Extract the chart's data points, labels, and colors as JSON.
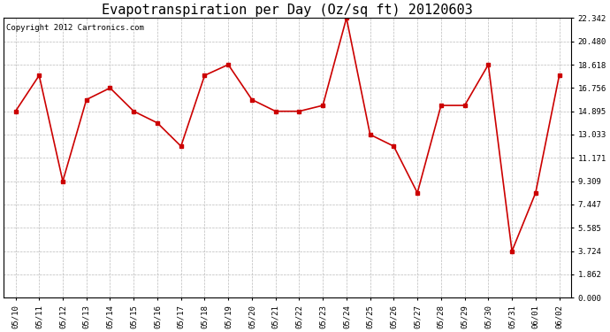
{
  "title": "Evapotranspiration per Day (Oz/sq ft) 20120603",
  "copyright": "Copyright 2012 Cartronics.com",
  "dates": [
    "05/10",
    "05/11",
    "05/12",
    "05/13",
    "05/14",
    "05/15",
    "05/16",
    "05/17",
    "05/18",
    "05/19",
    "05/20",
    "05/21",
    "05/22",
    "05/23",
    "05/24",
    "05/25",
    "05/26",
    "05/27",
    "05/28",
    "05/29",
    "05/30",
    "05/31",
    "06/01",
    "06/02"
  ],
  "values": [
    14.895,
    17.757,
    9.309,
    15.824,
    16.756,
    14.895,
    13.964,
    12.102,
    17.757,
    18.618,
    15.824,
    14.895,
    14.895,
    15.36,
    22.342,
    13.033,
    12.102,
    8.378,
    15.36,
    15.36,
    18.618,
    3.724,
    8.378,
    17.757
  ],
  "line_color": "#cc0000",
  "marker": "s",
  "marker_size": 2.5,
  "bg_color": "#ffffff",
  "plot_bg_color": "#ffffff",
  "grid_color": "#bbbbbb",
  "yticks": [
    0.0,
    1.862,
    3.724,
    5.585,
    7.447,
    9.309,
    11.171,
    13.033,
    14.895,
    16.756,
    18.618,
    20.48,
    22.342
  ],
  "ylim": [
    0.0,
    22.342
  ],
  "title_fontsize": 11,
  "copyright_fontsize": 6.5,
  "tick_fontsize": 6.5
}
